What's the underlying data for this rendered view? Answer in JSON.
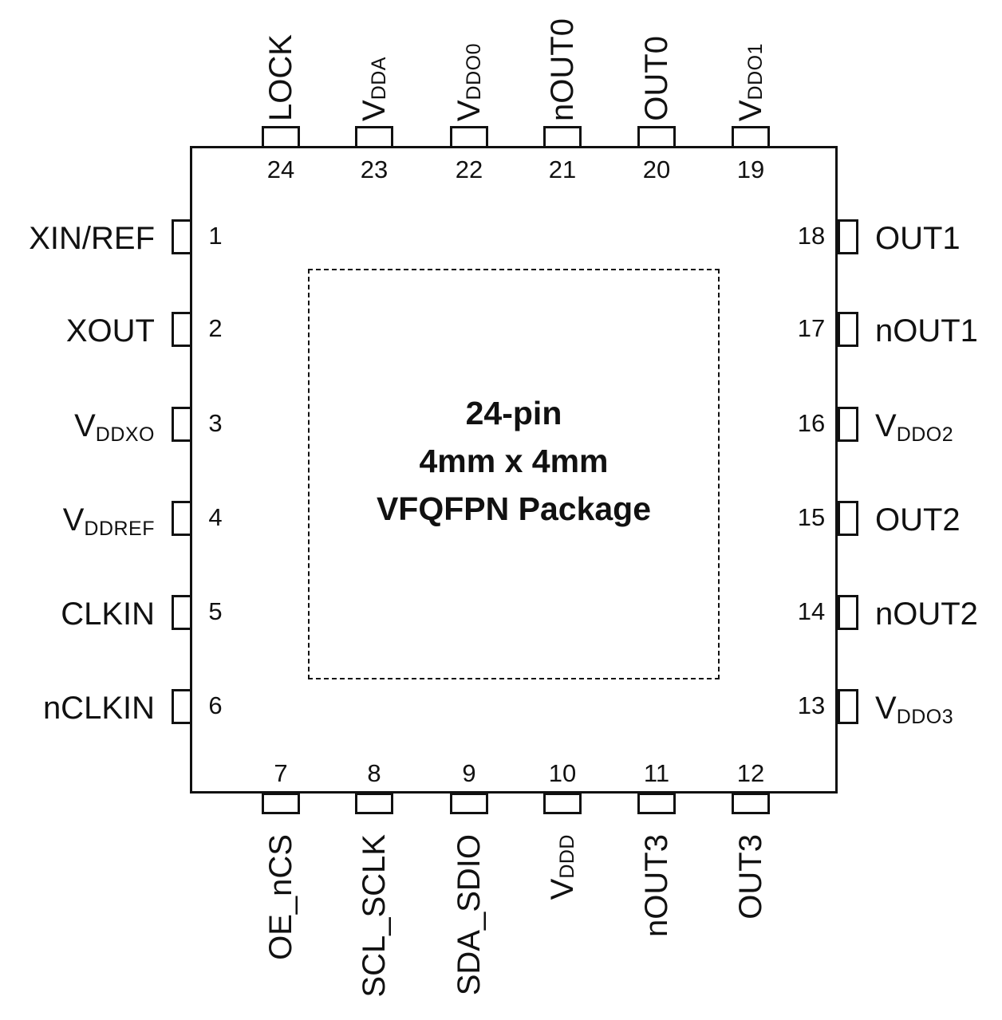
{
  "package": {
    "title_lines": [
      "24-pin",
      "4mm x 4mm",
      "VFQFPN Package"
    ]
  },
  "pins": [
    {
      "number": "1",
      "name": "XIN/REF",
      "sub": "",
      "side": "left"
    },
    {
      "number": "2",
      "name": "XOUT",
      "sub": "",
      "side": "left"
    },
    {
      "number": "3",
      "name": "V",
      "sub": "DDXO",
      "side": "left"
    },
    {
      "number": "4",
      "name": "V",
      "sub": "DDREF",
      "side": "left"
    },
    {
      "number": "5",
      "name": "CLKIN",
      "sub": "",
      "side": "left"
    },
    {
      "number": "6",
      "name": "nCLKIN",
      "sub": "",
      "side": "left"
    },
    {
      "number": "7",
      "name": "OE_nCS",
      "sub": "",
      "side": "bottom"
    },
    {
      "number": "8",
      "name": "SCL_SCLK",
      "sub": "",
      "side": "bottom"
    },
    {
      "number": "9",
      "name": "SDA_SDIO",
      "sub": "",
      "side": "bottom"
    },
    {
      "number": "10",
      "name": "V",
      "sub": "DDD",
      "side": "bottom"
    },
    {
      "number": "11",
      "name": "nOUT3",
      "sub": "",
      "side": "bottom"
    },
    {
      "number": "12",
      "name": "OUT3",
      "sub": "",
      "side": "bottom"
    },
    {
      "number": "13",
      "name": "V",
      "sub": "DDO3",
      "side": "right"
    },
    {
      "number": "14",
      "name": "nOUT2",
      "sub": "",
      "side": "right"
    },
    {
      "number": "15",
      "name": "OUT2",
      "sub": "",
      "side": "right"
    },
    {
      "number": "16",
      "name": "V",
      "sub": "DDO2",
      "side": "right"
    },
    {
      "number": "17",
      "name": "nOUT1",
      "sub": "",
      "side": "right"
    },
    {
      "number": "18",
      "name": "OUT1",
      "sub": "",
      "side": "right"
    },
    {
      "number": "19",
      "name": "V",
      "sub": "DDO1",
      "side": "top"
    },
    {
      "number": "20",
      "name": "OUT0",
      "sub": "",
      "side": "top"
    },
    {
      "number": "21",
      "name": "nOUT0",
      "sub": "",
      "side": "top"
    },
    {
      "number": "22",
      "name": "V",
      "sub": "DDO0",
      "side": "top"
    },
    {
      "number": "23",
      "name": "V",
      "sub": "DDA",
      "side": "top"
    },
    {
      "number": "24",
      "name": "LOCK",
      "sub": "",
      "side": "top"
    }
  ]
}
